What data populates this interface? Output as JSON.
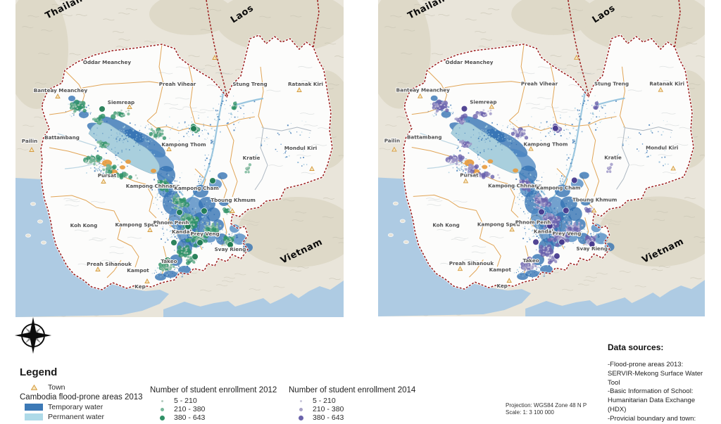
{
  "map": {
    "countries": [
      "Thailand",
      "Laos",
      "Vietnam"
    ],
    "provinces": [
      "Oddar Meanchey",
      "Banteay Meanchey",
      "Siemreap",
      "Preah Vihear",
      "Stung Treng",
      "Ratanak Kiri",
      "Pailin",
      "Battambang",
      "Kampong Thom",
      "Kratie",
      "Mondul Kiri",
      "Pursat",
      "Kampong Chhnang",
      "Kampong Cham",
      "Tboung Khmum",
      "Koh Kong",
      "Kampong Speu",
      "Phnom Penh",
      "Kandal",
      "Prey Veng",
      "Svay Rieng",
      "Preah Sihanouk",
      "Kampot",
      "Takeo",
      "Kep"
    ],
    "colors": {
      "land_outside": "#e9e5da",
      "land_inside": "#fcfcfb",
      "sea": "#aecbe3",
      "lake": "#a9cfdd",
      "flood_temporary": "#2f6fb2",
      "flood_permanent": "#a5d3e0",
      "country_border": "#9b1c1c",
      "province_border": "#dfa04e",
      "enrollment_2012": [
        "#b2cabd",
        "#6fb394",
        "#2f9268",
        "#1d7a50"
      ],
      "enrollment_2014": [
        "#c4bfd9",
        "#9a93c6",
        "#6a61ad",
        "#45378c"
      ]
    }
  },
  "legend": {
    "title": "Legend",
    "town_label": "Town",
    "flood_group_title": "Cambodia flood-prone areas 2013",
    "flood_items": [
      {
        "label": "Temporary water",
        "color": "#3c79b6"
      },
      {
        "label": "Permanent water",
        "color": "#aedae8"
      }
    ],
    "enrollment_2012": {
      "title": "Number of student enrollment 2012",
      "classes": [
        "5 - 210",
        "210 - 380",
        "380 - 643"
      ],
      "colors": [
        "#b2cabd",
        "#79b89c",
        "#2f9066"
      ]
    },
    "enrollment_2014": {
      "title": "Number of student enrollment 2014",
      "classes": [
        "5 - 210",
        "210 - 380",
        "380 - 643"
      ],
      "colors": [
        "#c9c6da",
        "#a8a2c6",
        "#6b63ab"
      ]
    }
  },
  "projection": {
    "line1": "Projection: WGS84 Zone 48 N P",
    "line2": "Scale: 1: 3 100 000"
  },
  "data_sources": {
    "title": "Data sources:",
    "lines": [
      "-Flood-prone areas 2013:",
      "SERVIR-Mekong Surface Water",
      "Tool",
      "-Basic Information of School:",
      "Humanitarian Data Exchange",
      "(HDX)",
      "-Provicial boundary and town:"
    ]
  }
}
